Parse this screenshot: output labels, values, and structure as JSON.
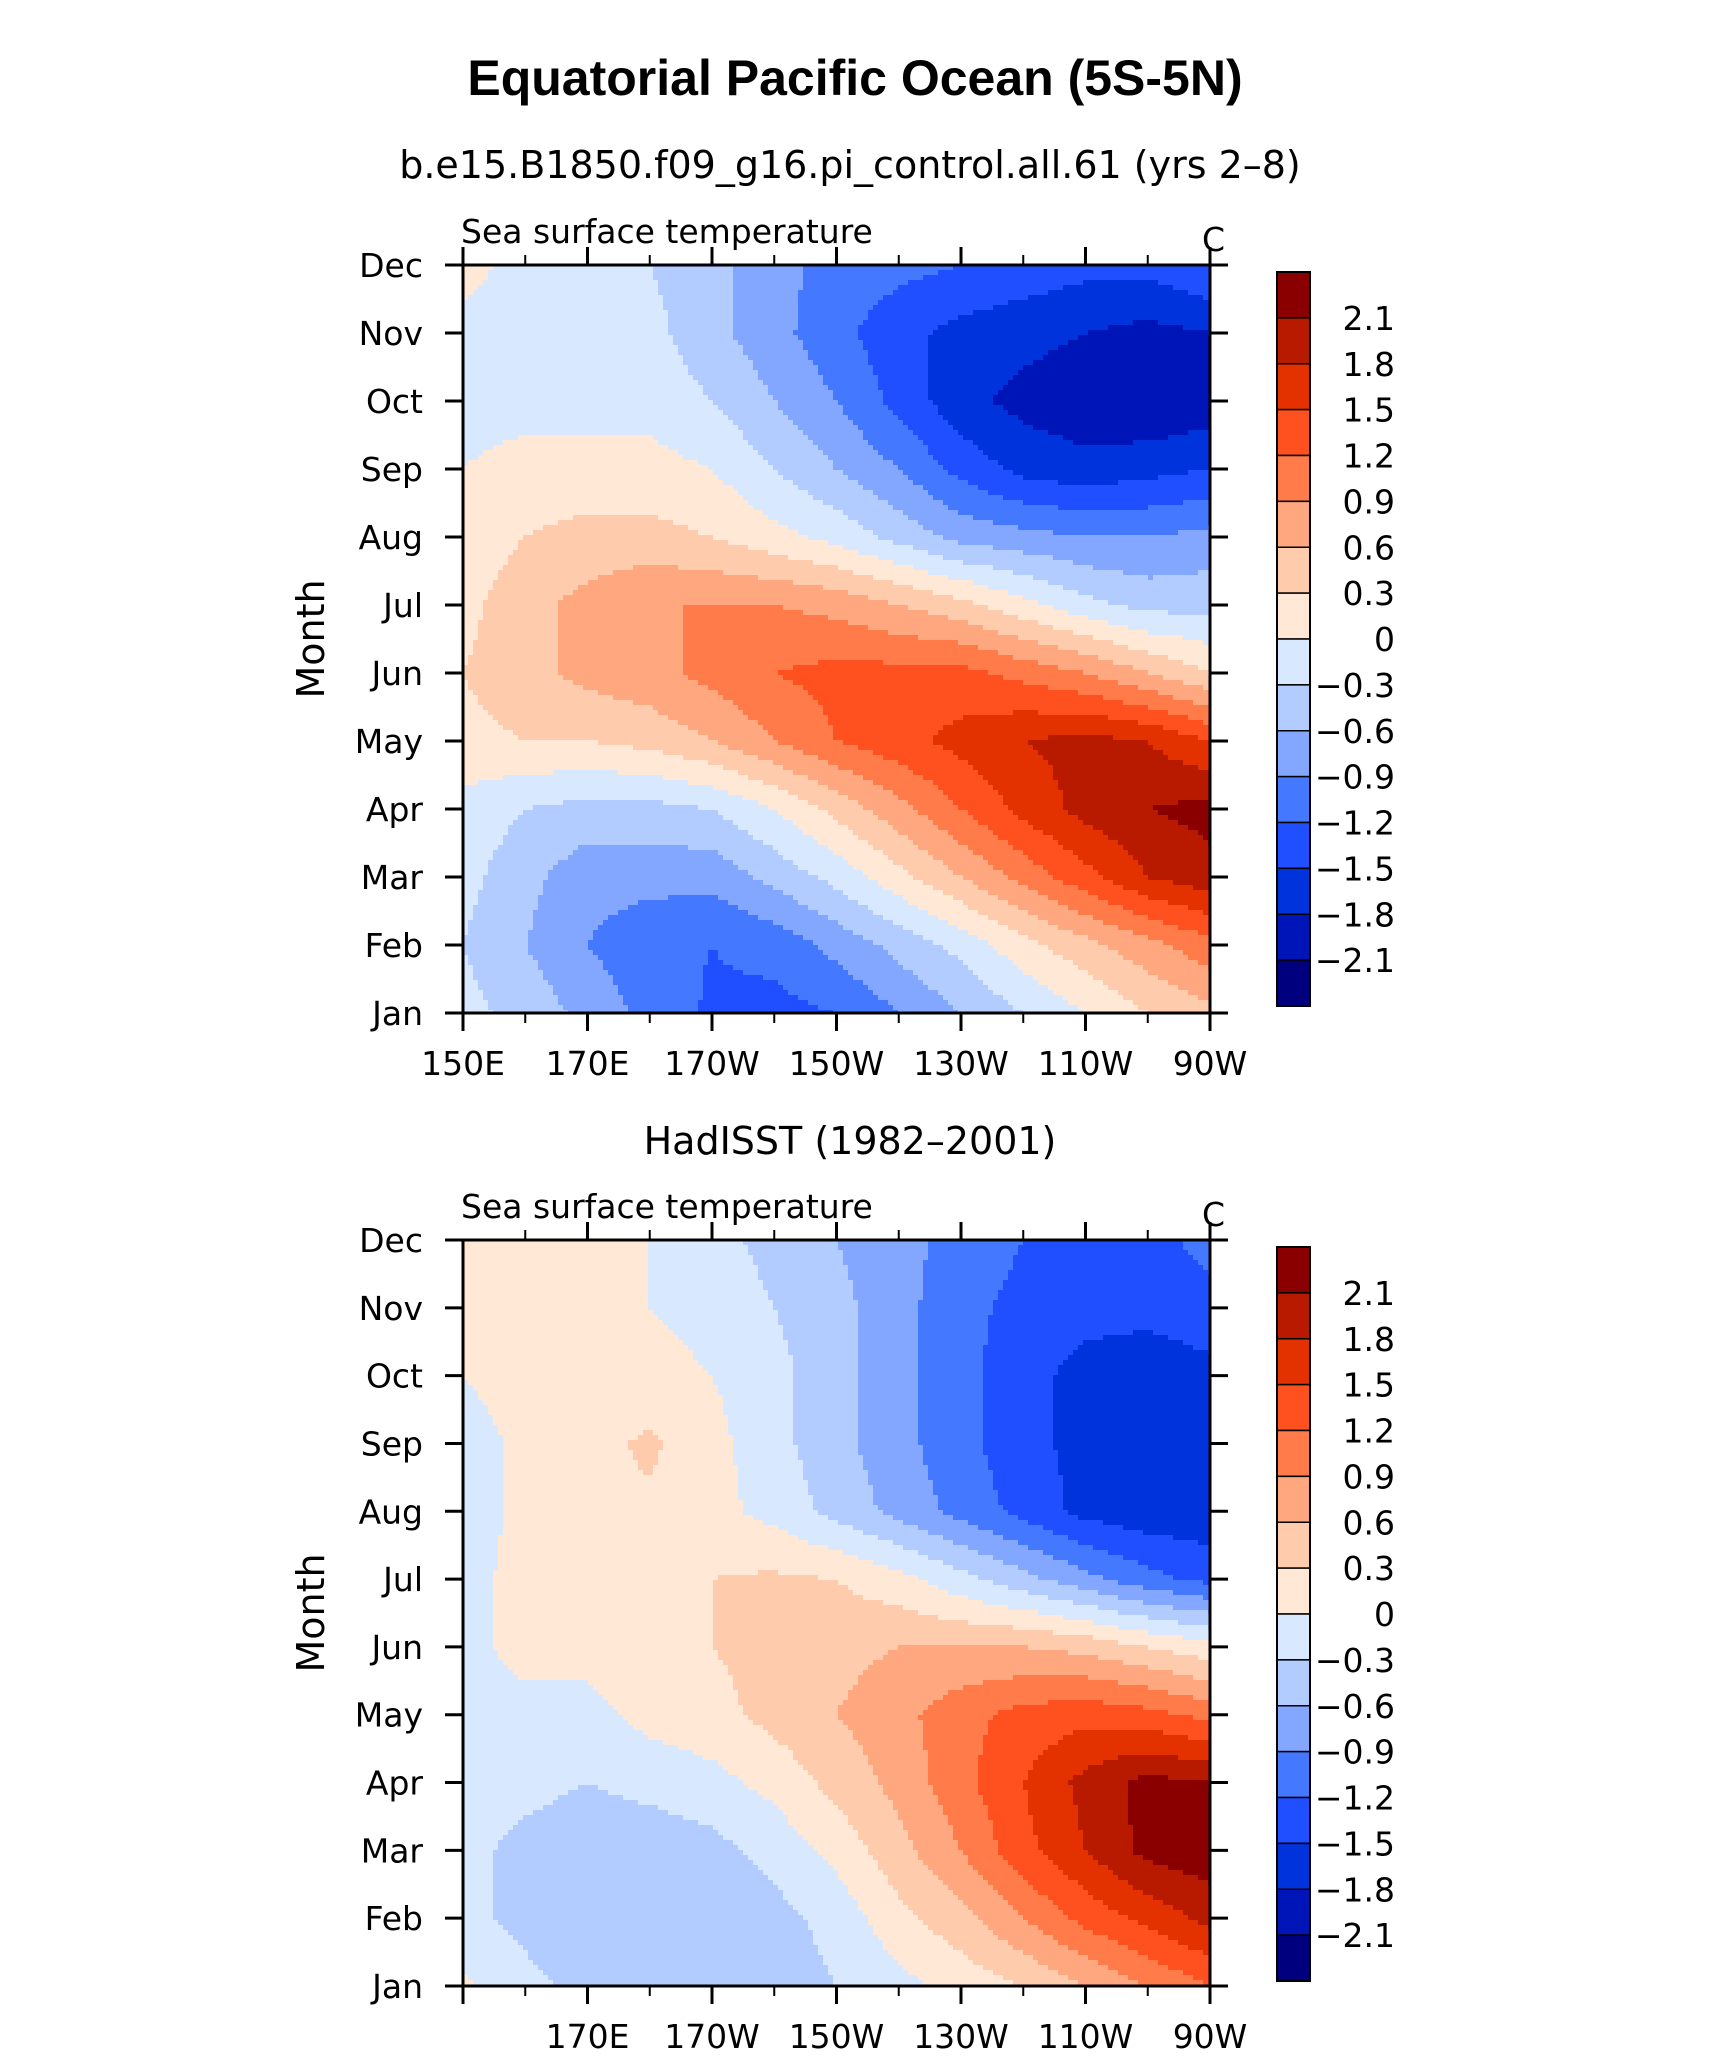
{
  "title": "Equatorial Pacific Ocean (5S-5N)",
  "colors": {
    "levels": [
      "#00007f",
      "#0015b8",
      "#0033dc",
      "#1f4fff",
      "#4478ff",
      "#83a7ff",
      "#b3ccff",
      "#d8e9ff",
      "#ffe9d6",
      "#ffcbad",
      "#ffa77f",
      "#ff7c4a",
      "#ff5020",
      "#e33200",
      "#b81a00",
      "#8a0000"
    ]
  },
  "chart_data": [
    {
      "type": "contour",
      "title": "b.e15.B1850.f09_g16.pi_control.all.61 (yrs 2–8)",
      "left_label": "Sea surface temperature",
      "units": "C",
      "ylabel": "Month",
      "xlabel": "",
      "x_ticks": [
        "150E",
        "170E",
        "170W",
        "150W",
        "130W",
        "110W",
        "90W"
      ],
      "x_tick_values": [
        150,
        170,
        190,
        210,
        230,
        250,
        270
      ],
      "y_ticks": [
        "Jan",
        "Feb",
        "Mar",
        "Apr",
        "May",
        "Jun",
        "Jul",
        "Aug",
        "Sep",
        "Oct",
        "Nov",
        "Dec"
      ],
      "xlim": [
        150,
        270
      ],
      "ylim": [
        1,
        12
      ],
      "levels": [
        -2.1,
        -1.8,
        -1.5,
        -1.2,
        -0.9,
        -0.6,
        -0.3,
        0,
        0.3,
        0.6,
        0.9,
        1.2,
        1.5,
        1.8,
        2.1
      ],
      "colorbar_labels": [
        "2.1",
        "1.8",
        "1.5",
        "1.2",
        "0.9",
        "0.6",
        "0.3",
        "0",
        "−0.3",
        "−0.6",
        "−0.9",
        "−1.2",
        "−1.5",
        "−1.8",
        "−2.1"
      ],
      "x": [
        150,
        160,
        170,
        180,
        190,
        200,
        210,
        220,
        230,
        240,
        250,
        260,
        270
      ],
      "months": [
        "Jan",
        "Feb",
        "Mar",
        "Apr",
        "May",
        "Jun",
        "Jul",
        "Aug",
        "Sep",
        "Oct",
        "Nov",
        "Dec"
      ],
      "z": [
        [
          -0.2,
          -0.4,
          -0.7,
          -1.0,
          -1.25,
          -1.3,
          -1.2,
          -0.9,
          -0.6,
          -0.3,
          0.0,
          0.3,
          0.5
        ],
        [
          -0.3,
          -0.6,
          -0.9,
          -1.1,
          -1.2,
          -1.1,
          -0.8,
          -0.5,
          -0.2,
          0.2,
          0.5,
          0.8,
          1.1
        ],
        [
          -0.2,
          -0.5,
          -0.8,
          -0.8,
          -0.8,
          -0.5,
          -0.2,
          0.2,
          0.6,
          1.0,
          1.4,
          1.8,
          2.0
        ],
        [
          -0.1,
          -0.3,
          -0.4,
          -0.4,
          -0.3,
          0.0,
          0.4,
          0.8,
          1.2,
          1.6,
          1.9,
          2.1,
          2.2
        ],
        [
          0.2,
          0.3,
          0.3,
          0.4,
          0.6,
          0.9,
          1.2,
          1.4,
          1.6,
          1.8,
          1.9,
          1.8,
          1.5
        ],
        [
          0.3,
          0.5,
          0.7,
          0.8,
          1.0,
          1.2,
          1.3,
          1.3,
          1.3,
          1.1,
          0.9,
          0.6,
          0.3
        ],
        [
          0.2,
          0.5,
          0.7,
          0.9,
          0.9,
          0.9,
          0.8,
          0.6,
          0.4,
          0.1,
          -0.2,
          -0.4,
          -0.4
        ],
        [
          0.1,
          0.3,
          0.4,
          0.4,
          0.3,
          0.1,
          -0.1,
          -0.4,
          -0.7,
          -0.8,
          -0.9,
          -0.9,
          -0.8
        ],
        [
          0.0,
          0.1,
          0.1,
          0.1,
          0.0,
          -0.3,
          -0.6,
          -0.9,
          -1.3,
          -1.6,
          -1.7,
          -1.6,
          -1.5
        ],
        [
          -0.1,
          -0.1,
          -0.1,
          -0.1,
          -0.3,
          -0.6,
          -0.9,
          -1.3,
          -1.7,
          -1.9,
          -2.0,
          -2.1,
          -2.0
        ],
        [
          -0.1,
          -0.1,
          0.0,
          -0.2,
          -0.5,
          -0.8,
          -1.1,
          -1.4,
          -1.6,
          -1.7,
          -1.8,
          -1.9,
          -1.8
        ],
        [
          0.1,
          -0.1,
          -0.2,
          -0.3,
          -0.5,
          -0.8,
          -1.0,
          -1.1,
          -1.2,
          -1.3,
          -1.4,
          -1.4,
          -1.2
        ]
      ]
    },
    {
      "type": "contour",
      "title": "HadISST (1982–2001)",
      "left_label": "Sea surface temperature",
      "units": "C",
      "ylabel": "Month",
      "xlabel": "",
      "x_ticks": [
        "170E",
        "170W",
        "150W",
        "130W",
        "110W",
        "90W"
      ],
      "x_tick_values": [
        170,
        190,
        210,
        230,
        250,
        270
      ],
      "y_ticks": [
        "Jan",
        "Feb",
        "Mar",
        "Apr",
        "May",
        "Jun",
        "Jul",
        "Aug",
        "Sep",
        "Oct",
        "Nov",
        "Dec"
      ],
      "xlim": [
        150,
        270
      ],
      "ylim": [
        1,
        12
      ],
      "levels": [
        -2.1,
        -1.8,
        -1.5,
        -1.2,
        -0.9,
        -0.6,
        -0.3,
        0,
        0.3,
        0.6,
        0.9,
        1.2,
        1.5,
        1.8,
        2.1
      ],
      "colorbar_labels": [
        "2.1",
        "1.8",
        "1.5",
        "1.2",
        "0.9",
        "0.6",
        "0.3",
        "0",
        "−0.3",
        "−0.6",
        "−0.9",
        "−1.2",
        "−1.5",
        "−1.8",
        "−2.1"
      ],
      "x": [
        150,
        160,
        170,
        180,
        190,
        200,
        210,
        220,
        230,
        240,
        250,
        260,
        270
      ],
      "months": [
        "Jan",
        "Feb",
        "Mar",
        "Apr",
        "May",
        "Jun",
        "Jul",
        "Aug",
        "Sep",
        "Oct",
        "Nov",
        "Dec"
      ],
      "z": [
        [
          0.05,
          -0.2,
          -0.4,
          -0.5,
          -0.5,
          -0.45,
          -0.3,
          -0.1,
          0.1,
          0.3,
          0.6,
          0.9,
          1.2
        ],
        [
          -0.2,
          -0.4,
          -0.6,
          -0.6,
          -0.6,
          -0.4,
          -0.2,
          0.2,
          0.5,
          0.9,
          1.3,
          1.6,
          1.9
        ],
        [
          -0.2,
          -0.4,
          -0.5,
          -0.5,
          -0.4,
          -0.2,
          0.1,
          0.5,
          0.9,
          1.4,
          1.8,
          2.2,
          2.3
        ],
        [
          -0.1,
          -0.2,
          -0.3,
          -0.2,
          -0.1,
          0.1,
          0.4,
          0.7,
          1.1,
          1.5,
          1.9,
          2.2,
          2.1
        ],
        [
          -0.1,
          -0.1,
          -0.1,
          0.1,
          0.2,
          0.4,
          0.6,
          0.8,
          1.1,
          1.3,
          1.4,
          1.3,
          1.1
        ],
        [
          -0.1,
          0.1,
          0.1,
          0.2,
          0.3,
          0.4,
          0.5,
          0.6,
          0.6,
          0.6,
          0.5,
          0.3,
          0.1
        ],
        [
          -0.1,
          0.1,
          0.2,
          0.2,
          0.3,
          0.35,
          0.3,
          0.1,
          -0.2,
          -0.5,
          -0.8,
          -1.1,
          -1.3
        ],
        [
          -0.1,
          0.05,
          0.25,
          0.25,
          0.1,
          -0.1,
          -0.4,
          -0.7,
          -1.0,
          -1.3,
          -1.6,
          -1.7,
          -1.7
        ],
        [
          -0.1,
          0.05,
          0.2,
          0.35,
          0.1,
          -0.2,
          -0.5,
          -0.8,
          -1.1,
          -1.4,
          -1.6,
          -1.8,
          -1.8
        ],
        [
          0.0,
          0.1,
          0.1,
          0.1,
          0.0,
          -0.2,
          -0.5,
          -0.8,
          -1.1,
          -1.4,
          -1.6,
          -1.7,
          -1.6
        ],
        [
          0.1,
          0.1,
          0.1,
          0.0,
          -0.1,
          -0.3,
          -0.5,
          -0.8,
          -1.1,
          -1.3,
          -1.4,
          -1.4,
          -1.3
        ],
        [
          0.1,
          0.1,
          0.05,
          0.0,
          -0.2,
          -0.4,
          -0.6,
          -0.8,
          -1.0,
          -1.2,
          -1.3,
          -1.3,
          -1.1
        ]
      ]
    }
  ]
}
